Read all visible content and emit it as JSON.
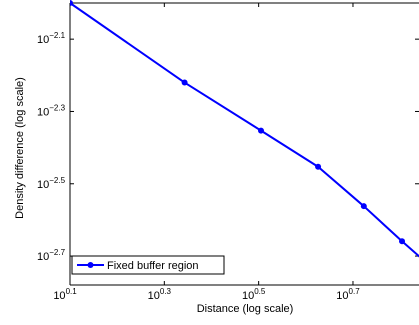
{
  "chart_data": {
    "type": "line",
    "title": "",
    "xlabel": "Distance (log scale)",
    "ylabel": "Density difference (log scale)",
    "xscale": "log",
    "yscale": "log",
    "xlim_exponent": [
      0.1,
      0.84
    ],
    "ylim_exponent": [
      -2.78,
      -2.0
    ],
    "x_ticks": [
      {
        "base": "10",
        "exp": "0.1",
        "value": 0.1
      },
      {
        "base": "10",
        "exp": "0.3",
        "value": 0.3
      },
      {
        "base": "10",
        "exp": "0.5",
        "value": 0.5
      },
      {
        "base": "10",
        "exp": "0.7",
        "value": 0.7
      }
    ],
    "y_ticks": [
      {
        "base": "10",
        "exp": "−2.1",
        "value": -2.1
      },
      {
        "base": "10",
        "exp": "−2.3",
        "value": -2.3
      },
      {
        "base": "10",
        "exp": "−2.5",
        "value": -2.5
      },
      {
        "base": "10",
        "exp": "−2.7",
        "value": -2.7
      }
    ],
    "series": [
      {
        "name": "Fixed buffer region",
        "color": "#0000ff",
        "x_exponent": [
          0.1,
          0.343,
          0.505,
          0.626,
          0.723,
          0.804,
          0.873
        ],
        "y_exponent": [
          -2.0,
          -2.22,
          -2.353,
          -2.453,
          -2.562,
          -2.659,
          -2.738
        ]
      }
    ],
    "legend": "bottom-left",
    "grid": false
  }
}
